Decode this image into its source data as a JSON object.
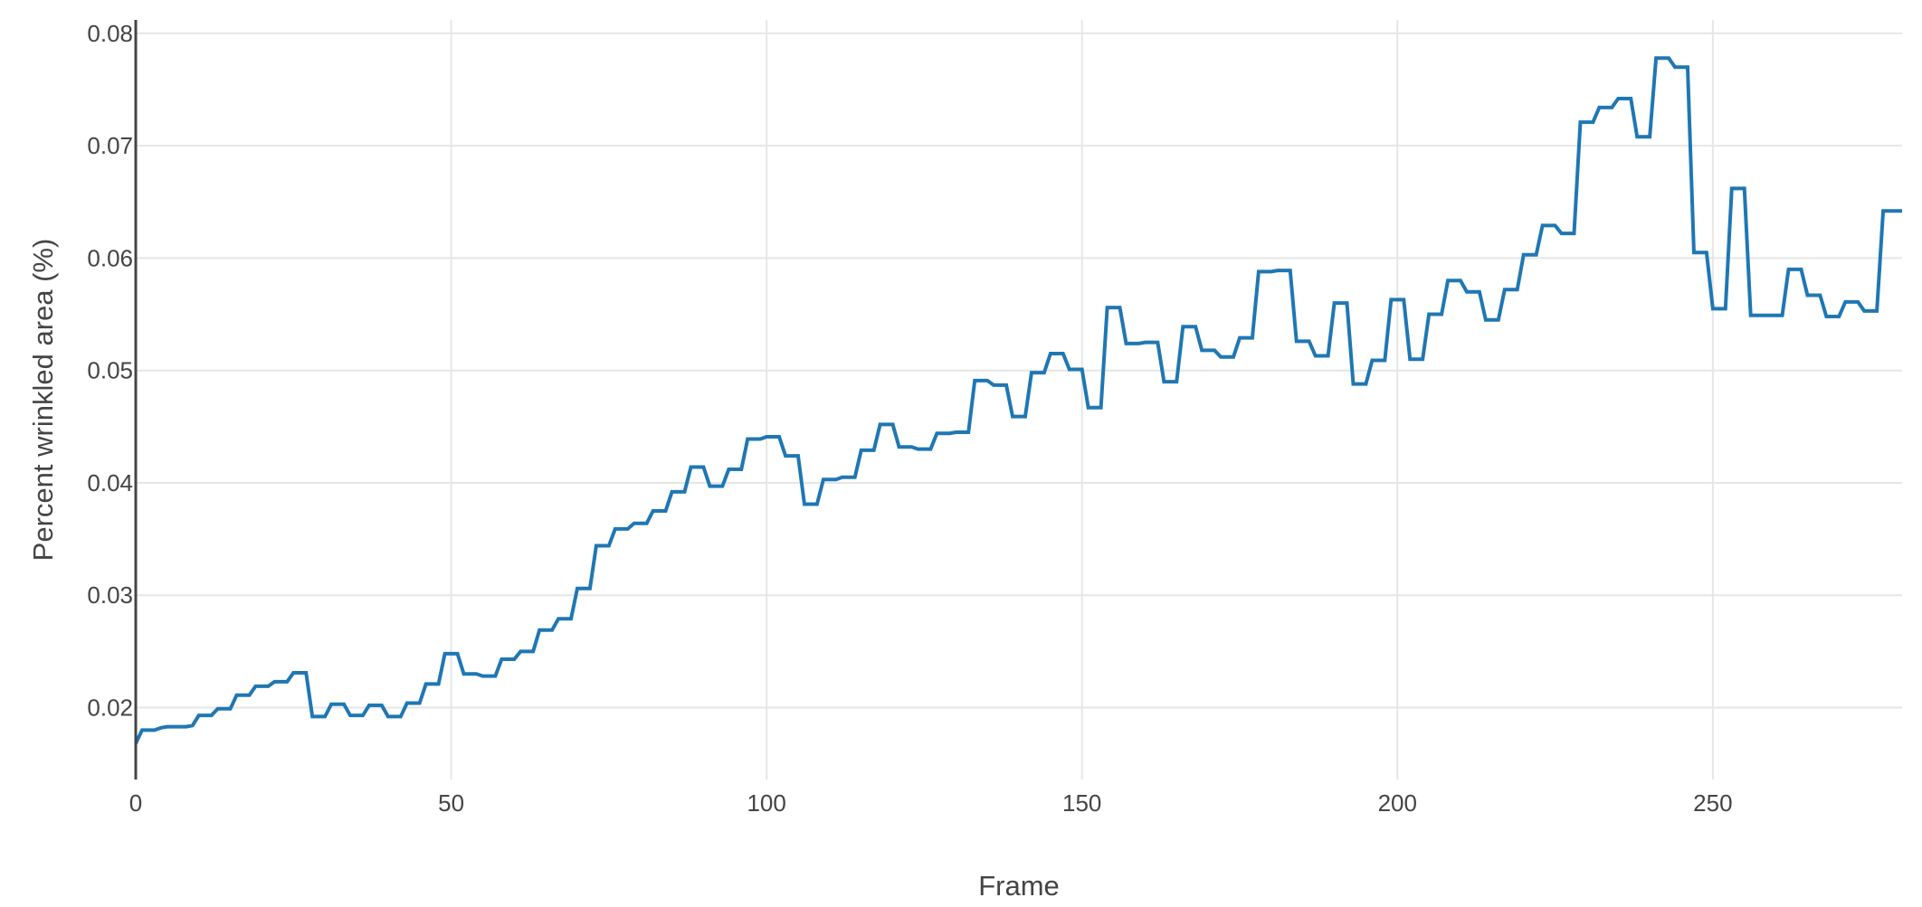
{
  "chart_data": {
    "type": "line",
    "title": "",
    "xlabel": "Frame",
    "ylabel": "Percent wrinkled area (%)",
    "xlim": [
      0,
      280
    ],
    "ylim": [
      0.0136,
      0.0812
    ],
    "x_ticks": [
      0,
      50,
      100,
      150,
      200,
      250
    ],
    "x_tick_labels": [
      "0",
      "50",
      "100",
      "150",
      "200",
      "250"
    ],
    "y_ticks": [
      0.02,
      0.03,
      0.04,
      0.05,
      0.06,
      0.07,
      0.08
    ],
    "y_tick_labels": [
      "0.02",
      "0.03",
      "0.04",
      "0.05",
      "0.06",
      "0.07",
      "0.08"
    ],
    "grid": true,
    "line_color": "#1f77b4",
    "series": [
      {
        "x": [
          0,
          1,
          2,
          3,
          4,
          5,
          6,
          7,
          8,
          9,
          10,
          11,
          12,
          13,
          14,
          15,
          16,
          17,
          18,
          19,
          20,
          21,
          22,
          23,
          24,
          25,
          26,
          27,
          28,
          29,
          30,
          31,
          32,
          33,
          34,
          35,
          36,
          37,
          38,
          39,
          40,
          41,
          42,
          43,
          44,
          45,
          46,
          47,
          48,
          49,
          50,
          51,
          52,
          53,
          54,
          55,
          56,
          57,
          58,
          59,
          60,
          61,
          62,
          63,
          64,
          65,
          66,
          67,
          68,
          69,
          70,
          71,
          72,
          73,
          74,
          75,
          76,
          77,
          78,
          79,
          80,
          81,
          82,
          83,
          84,
          85,
          86,
          87,
          88,
          89,
          90,
          91,
          92,
          93,
          94,
          95,
          96,
          97,
          98,
          99,
          100,
          101,
          102,
          103,
          104,
          105,
          106,
          107,
          108,
          109,
          110,
          111,
          112,
          113,
          114,
          115,
          116,
          117,
          118,
          119,
          120,
          121,
          122,
          123,
          124,
          125,
          126,
          127,
          128,
          129,
          130,
          131,
          132,
          133,
          134,
          135,
          136,
          137,
          138,
          139,
          140,
          141,
          142,
          143,
          144,
          145,
          146,
          147,
          148,
          149,
          150,
          151,
          152,
          153,
          154,
          155,
          156,
          157,
          158,
          159,
          160,
          161,
          162,
          163,
          164,
          165,
          166,
          167,
          168,
          169,
          170,
          171,
          172,
          173,
          174,
          175,
          176,
          177,
          178,
          179,
          180,
          181,
          182,
          183,
          184,
          185,
          186,
          187,
          188,
          189,
          190,
          191,
          192,
          193,
          194,
          195,
          196,
          197,
          198,
          199,
          200,
          201,
          202,
          203,
          204,
          205,
          206,
          207,
          208,
          209,
          210,
          211,
          212,
          213,
          214,
          215,
          216,
          217,
          218,
          219,
          220,
          221,
          222,
          223,
          224,
          225,
          226,
          227,
          228,
          229,
          230,
          231,
          232,
          233,
          234,
          235,
          236,
          237,
          238,
          239,
          240,
          241,
          242,
          243,
          244,
          245,
          246,
          247,
          248,
          249,
          250,
          251,
          252,
          253,
          254,
          255,
          256,
          257,
          258,
          259,
          260,
          261,
          262,
          263,
          264,
          265,
          266,
          267,
          268,
          269,
          270,
          271,
          272,
          273,
          274,
          275,
          276,
          277,
          278,
          279,
          280
        ],
        "y": [
          0.0168,
          0.018,
          0.018,
          0.018,
          0.0182,
          0.0183,
          0.0183,
          0.0183,
          0.0183,
          0.0184,
          0.0193,
          0.0193,
          0.0193,
          0.0199,
          0.0199,
          0.0199,
          0.0211,
          0.0211,
          0.0211,
          0.0219,
          0.0219,
          0.0219,
          0.0223,
          0.0223,
          0.0223,
          0.0231,
          0.0231,
          0.0231,
          0.0192,
          0.0192,
          0.0192,
          0.0203,
          0.0203,
          0.0203,
          0.0193,
          0.0193,
          0.0193,
          0.0202,
          0.0202,
          0.0202,
          0.0192,
          0.0192,
          0.0192,
          0.0204,
          0.0204,
          0.0204,
          0.0221,
          0.0221,
          0.0221,
          0.0248,
          0.0248,
          0.0248,
          0.023,
          0.023,
          0.023,
          0.0228,
          0.0228,
          0.0228,
          0.0243,
          0.0243,
          0.0243,
          0.025,
          0.025,
          0.025,
          0.0269,
          0.0269,
          0.0269,
          0.0279,
          0.0279,
          0.0279,
          0.0306,
          0.0306,
          0.0306,
          0.0344,
          0.0344,
          0.0344,
          0.0359,
          0.0359,
          0.0359,
          0.0364,
          0.0364,
          0.0364,
          0.0375,
          0.0375,
          0.0375,
          0.0392,
          0.0392,
          0.0392,
          0.0414,
          0.0414,
          0.0414,
          0.0397,
          0.0397,
          0.0397,
          0.0412,
          0.0412,
          0.0412,
          0.0439,
          0.0439,
          0.0439,
          0.0441,
          0.0441,
          0.0441,
          0.0424,
          0.0424,
          0.0424,
          0.0381,
          0.0381,
          0.0381,
          0.0403,
          0.0403,
          0.0403,
          0.0405,
          0.0405,
          0.0405,
          0.0429,
          0.0429,
          0.0429,
          0.0452,
          0.0452,
          0.0452,
          0.0432,
          0.0432,
          0.0432,
          0.043,
          0.043,
          0.043,
          0.0444,
          0.0444,
          0.0444,
          0.0445,
          0.0445,
          0.0445,
          0.0491,
          0.0491,
          0.0491,
          0.0487,
          0.0487,
          0.0487,
          0.0459,
          0.0459,
          0.0459,
          0.0498,
          0.0498,
          0.0498,
          0.0515,
          0.0515,
          0.0515,
          0.0501,
          0.0501,
          0.0501,
          0.0467,
          0.0467,
          0.0467,
          0.0556,
          0.0556,
          0.0556,
          0.0524,
          0.0524,
          0.0524,
          0.0525,
          0.0525,
          0.0525,
          0.049,
          0.049,
          0.049,
          0.0539,
          0.0539,
          0.0539,
          0.0518,
          0.0518,
          0.0518,
          0.0512,
          0.0512,
          0.0512,
          0.0529,
          0.0529,
          0.0529,
          0.0588,
          0.0588,
          0.0588,
          0.0589,
          0.0589,
          0.0589,
          0.0526,
          0.0526,
          0.0526,
          0.0513,
          0.0513,
          0.0513,
          0.056,
          0.056,
          0.056,
          0.0488,
          0.0488,
          0.0488,
          0.0509,
          0.0509,
          0.0509,
          0.0563,
          0.0563,
          0.0563,
          0.051,
          0.051,
          0.051,
          0.055,
          0.055,
          0.055,
          0.058,
          0.058,
          0.058,
          0.057,
          0.057,
          0.057,
          0.0545,
          0.0545,
          0.0545,
          0.0572,
          0.0572,
          0.0572,
          0.0603,
          0.0603,
          0.0603,
          0.0629,
          0.0629,
          0.0629,
          0.0622,
          0.0622,
          0.0622,
          0.0721,
          0.0721,
          0.0721,
          0.0734,
          0.0734,
          0.0734,
          0.0742,
          0.0742,
          0.0742,
          0.0708,
          0.0708,
          0.0708,
          0.0778,
          0.0778,
          0.0778,
          0.077,
          0.077,
          0.077,
          0.0605,
          0.0605,
          0.0605,
          0.0555,
          0.0555,
          0.0555,
          0.0662,
          0.0662,
          0.0662,
          0.0549,
          0.0549,
          0.0549,
          0.0549,
          0.0549,
          0.0549,
          0.059,
          0.059,
          0.059,
          0.0567,
          0.0567,
          0.0567,
          0.0548,
          0.0548,
          0.0548,
          0.0561,
          0.0561,
          0.0561,
          0.0553,
          0.0553,
          0.0553,
          0.0642,
          0.0642,
          0.0642,
          0.0642
        ]
      }
    ]
  }
}
